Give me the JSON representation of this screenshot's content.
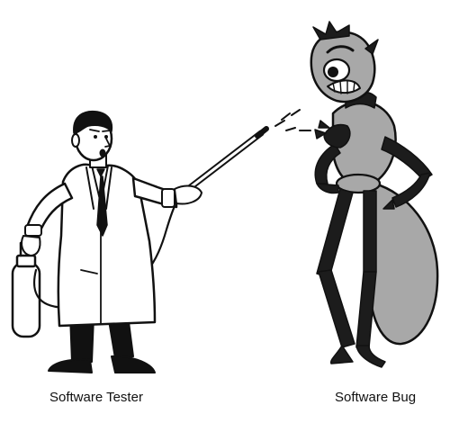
{
  "captions": {
    "tester": "Software Tester",
    "bug": "Software Bug"
  },
  "colors": {
    "ink": "#111111",
    "bug_body": "#a8a8a8",
    "bug_dark": "#1c1c1c",
    "coat": "#ffffff",
    "background": "#ffffff"
  }
}
